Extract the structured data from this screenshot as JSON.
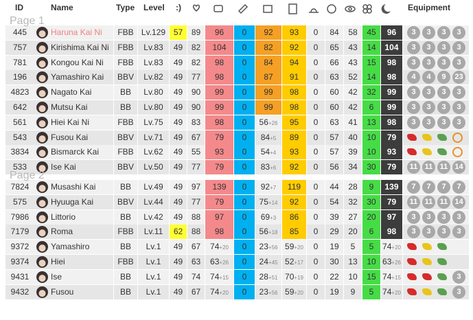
{
  "header": {
    "columns": [
      "ID",
      "Name",
      "Type",
      "Level",
      ":)",
      "Equipment"
    ]
  },
  "stat_colors": {
    "2": "#f4898b",
    "3": "#00b0f0",
    "4": "#f5a024",
    "5": "#ffcc00",
    "9": "#46dc46",
    "10": "#3c3c3c"
  },
  "pages": [
    {
      "label": "Page 1",
      "rows": [
        {
          "id": "445",
          "name": "Haruna Kai Ni",
          "name_color": "#f08080",
          "type": "FBB",
          "level": "Lv.129",
          "mood_color": "#ffff33",
          "stats": [
            57,
            89,
            96,
            0,
            92,
            93,
            0,
            84,
            58,
            45,
            96
          ],
          "equipment": [
            3,
            3,
            3,
            3
          ]
        },
        {
          "id": "757",
          "name": "Kirishima Kai Ni",
          "type": "FBB",
          "level": "Lv.83",
          "stats": [
            49,
            82,
            104,
            0,
            82,
            92,
            0,
            65,
            43,
            14,
            104
          ],
          "equipment": [
            3,
            3,
            3,
            3
          ]
        },
        {
          "id": "781",
          "name": "Kongou Kai Ni",
          "type": "FBB",
          "level": "Lv.83",
          "stats": [
            49,
            82,
            98,
            0,
            84,
            94,
            0,
            66,
            43,
            15,
            98
          ],
          "equipment": [
            3,
            3,
            3,
            3
          ]
        },
        {
          "id": "196",
          "name": "Yamashiro Kai",
          "type": "BBV",
          "level": "Lv.82",
          "stats": [
            49,
            77,
            98,
            0,
            87,
            91,
            0,
            63,
            52,
            14,
            98
          ],
          "equipment": [
            4,
            4,
            9,
            23
          ]
        },
        {
          "id": "4823",
          "name": "Nagato Kai",
          "type": "BB",
          "level": "Lv.80",
          "stats": [
            49,
            90,
            99,
            0,
            99,
            98,
            0,
            60,
            42,
            32,
            99
          ],
          "equipment": [
            3,
            3,
            3,
            3
          ]
        },
        {
          "id": "642",
          "name": "Mutsu Kai",
          "type": "BB",
          "level": "Lv.80",
          "stats": [
            49,
            90,
            99,
            0,
            99,
            98,
            0,
            60,
            42,
            6,
            99
          ],
          "equipment": [
            3,
            3,
            3,
            3
          ]
        },
        {
          "id": "561",
          "name": "Hiei Kai Ni",
          "type": "FBB",
          "level": "Lv.75",
          "stats": [
            49,
            83,
            98,
            0,
            {
              "base": "56",
              "bonus": "+26"
            },
            95,
            0,
            63,
            41,
            13,
            98
          ],
          "equipment": [
            3,
            3,
            3,
            3
          ]
        },
        {
          "id": "543",
          "name": "Fusou Kai",
          "type": "BBV",
          "level": "Lv.71",
          "stats": [
            49,
            67,
            79,
            0,
            {
              "base": "84",
              "bonus": "+5"
            },
            89,
            0,
            57,
            40,
            10,
            79
          ],
          "equipment": []
        },
        {
          "id": "3834",
          "name": "Bismarck Kai",
          "type": "FBB",
          "level": "Lv.62",
          "stats": [
            49,
            55,
            93,
            0,
            {
              "base": "54",
              "bonus": "+4"
            },
            93,
            0,
            57,
            39,
            10,
            93
          ],
          "equipment": []
        },
        {
          "id": "533",
          "name": "Ise Kai",
          "type": "BBV",
          "level": "Lv.50",
          "stats": [
            49,
            77,
            79,
            0,
            {
              "base": "83",
              "bonus": "+6"
            },
            92,
            0,
            56,
            34,
            30,
            79
          ],
          "equipment": [
            11,
            11,
            11,
            14
          ]
        }
      ]
    },
    {
      "label": "Page 2",
      "rows": [
        {
          "id": "7824",
          "name": "Musashi Kai",
          "type": "BB",
          "level": "Lv.49",
          "stats": [
            49,
            97,
            139,
            0,
            {
              "base": "92",
              "bonus": "+7"
            },
            119,
            0,
            44,
            28,
            9,
            139
          ],
          "equipment": [
            7,
            7,
            7,
            7
          ]
        },
        {
          "id": "575",
          "name": "Hyuuga Kai",
          "type": "BBV",
          "level": "Lv.44",
          "stats": [
            49,
            77,
            79,
            0,
            {
              "base": "75",
              "bonus": "+14"
            },
            92,
            0,
            54,
            32,
            30,
            79
          ],
          "equipment": [
            11,
            11,
            11,
            14
          ]
        },
        {
          "id": "7986",
          "name": "Littorio",
          "type": "BB",
          "level": "Lv.42",
          "stats": [
            49,
            88,
            97,
            0,
            {
              "base": "69",
              "bonus": "+3"
            },
            86,
            0,
            39,
            27,
            20,
            97
          ],
          "equipment": [
            3,
            3,
            3,
            3
          ]
        },
        {
          "id": "7179",
          "name": "Roma",
          "type": "FBB",
          "level": "Lv.11",
          "mood_color": "#ffff33",
          "stats": [
            62,
            88,
            98,
            0,
            {
              "base": "56",
              "bonus": "+18"
            },
            85,
            0,
            29,
            20,
            6,
            98
          ],
          "equipment": [
            3,
            3,
            3,
            3
          ]
        },
        {
          "id": "9372",
          "name": "Yamashiro",
          "type": "BB",
          "level": "Lv.1",
          "stats": [
            49,
            67,
            {
              "base": "74",
              "bonus": "+20"
            },
            0,
            {
              "base": "23",
              "bonus": "+56"
            },
            {
              "base": "59",
              "bonus": "+20"
            },
            0,
            19,
            5,
            5,
            {
              "base": "74",
              "bonus": "+20"
            }
          ],
          "equipment": []
        },
        {
          "id": "9374",
          "name": "Hiei",
          "type": "FBB",
          "level": "Lv.1",
          "stats": [
            49,
            63,
            {
              "base": "63",
              "bonus": "+26"
            },
            0,
            {
              "base": "24",
              "bonus": "+45"
            },
            {
              "base": "52",
              "bonus": "+17"
            },
            0,
            30,
            13,
            10,
            {
              "base": "63",
              "bonus": "+26"
            }
          ],
          "equipment": []
        },
        {
          "id": "9431",
          "name": "Ise",
          "type": "BB",
          "level": "Lv.1",
          "stats": [
            49,
            74,
            {
              "base": "74",
              "bonus": "+15"
            },
            0,
            {
              "base": "28",
              "bonus": "+51"
            },
            {
              "base": "70",
              "bonus": "+19"
            },
            0,
            22,
            10,
            15,
            {
              "base": "74",
              "bonus": "+15"
            }
          ],
          "equipment": [
            3
          ]
        },
        {
          "id": "9432",
          "name": "Fusou",
          "type": "BB",
          "level": "Lv.1",
          "stats": [
            49,
            67,
            {
              "base": "74",
              "bonus": "+20"
            },
            0,
            {
              "base": "23",
              "bonus": "+56"
            },
            {
              "base": "59",
              "bonus": "+20"
            },
            0,
            19,
            9,
            5,
            {
              "base": "74",
              "bonus": "+20"
            }
          ],
          "equipment": [
            3
          ]
        }
      ]
    }
  ]
}
